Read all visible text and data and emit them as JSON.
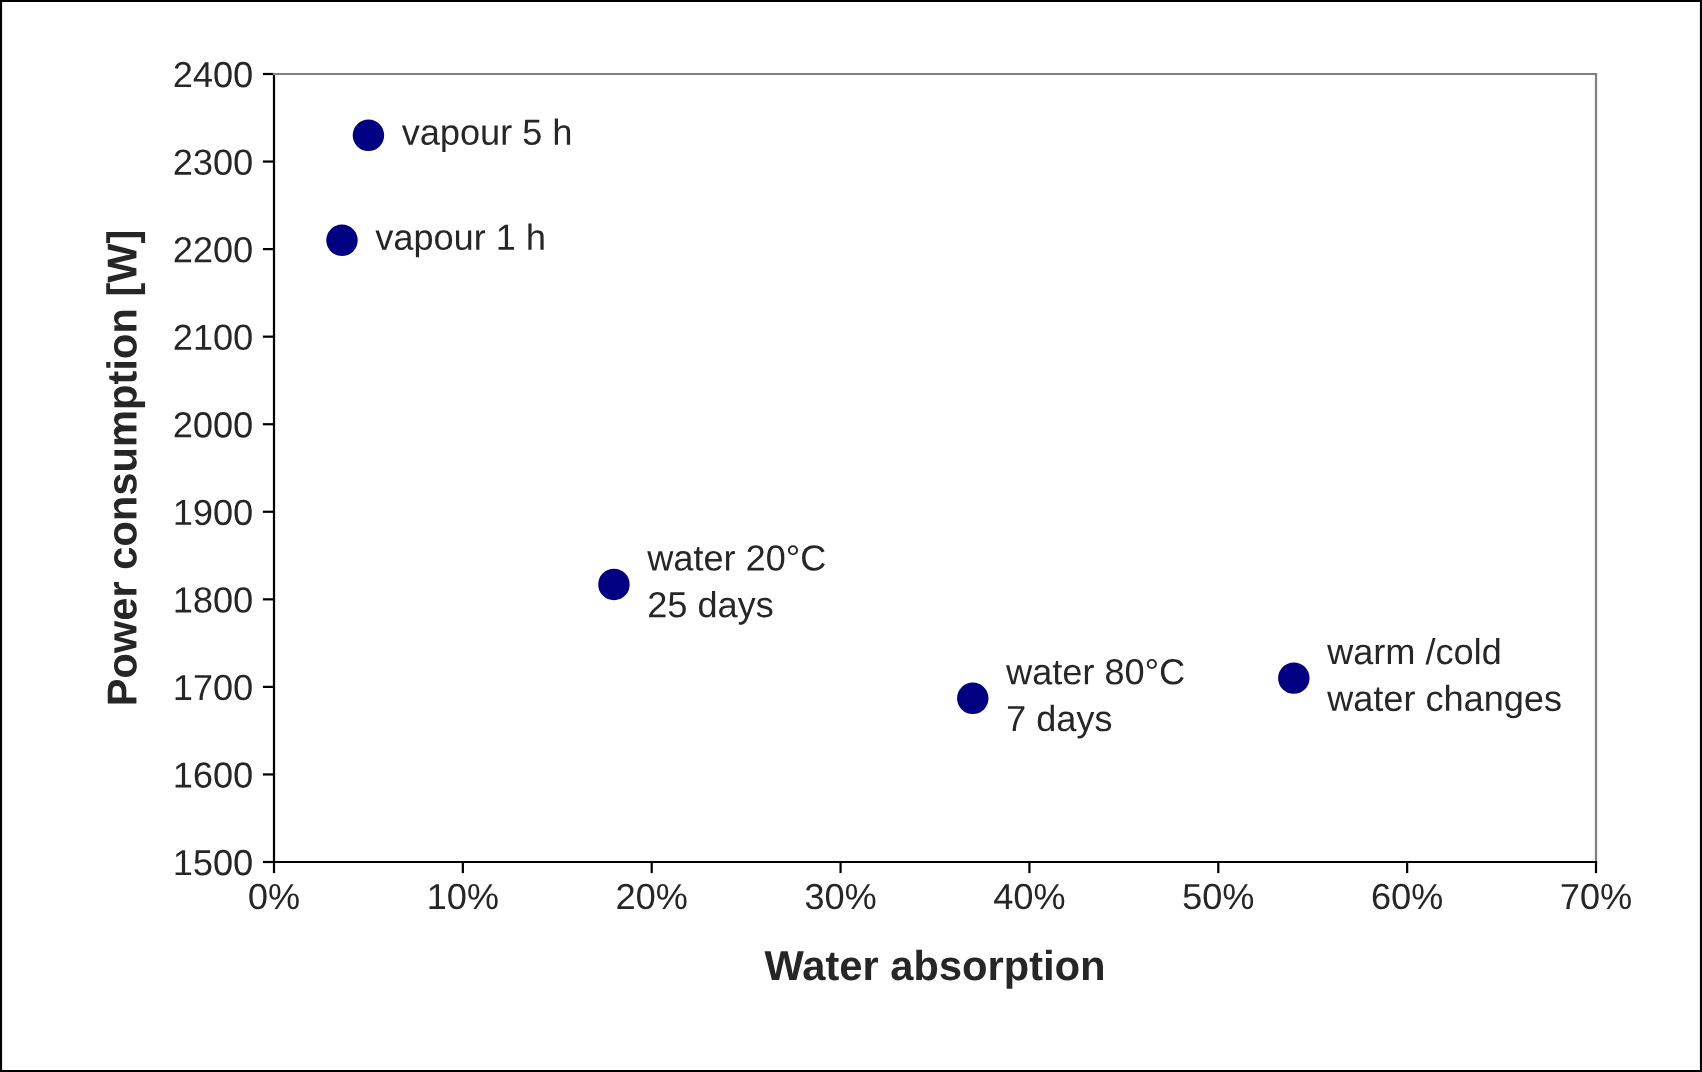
{
  "chart_data": {
    "type": "scatter",
    "xlabel": "Water absorption",
    "ylabel": "Power consumption [W]",
    "x": [
      5,
      3.6,
      18,
      37,
      54
    ],
    "series": [
      {
        "color": "#000080",
        "values": [
          2330,
          2210,
          1817,
          1687,
          1710
        ]
      }
    ],
    "xlim": [
      0,
      70
    ],
    "xticks": [
      {
        "value": 0,
        "label": "0%"
      },
      {
        "value": 10,
        "label": "10%"
      },
      {
        "value": 20,
        "label": "20%"
      },
      {
        "value": 30,
        "label": "30%"
      },
      {
        "value": 40,
        "label": "40%"
      },
      {
        "value": 50,
        "label": "50%"
      },
      {
        "value": 60,
        "label": "60%"
      },
      {
        "value": 70,
        "label": "70%"
      }
    ],
    "ylim": [
      1500,
      2400
    ],
    "yticks": [
      1500,
      1600,
      1700,
      1800,
      1900,
      2000,
      2100,
      2200,
      2300,
      2400
    ],
    "annotations": [
      {
        "text": "vapour 5 h",
        "x": 5,
        "y": 2330
      },
      {
        "text": "vapour 1 h",
        "x": 3.6,
        "y": 2210
      },
      {
        "text": "water 20°C\n25 days",
        "x": 18,
        "y": 1817
      },
      {
        "text": "water 80°C\n7 days",
        "x": 37,
        "y": 1687
      },
      {
        "text": "warm /cold\nwater changes",
        "x": 54,
        "y": 1710
      }
    ],
    "grid": false,
    "legend": false,
    "marker": "circle"
  }
}
